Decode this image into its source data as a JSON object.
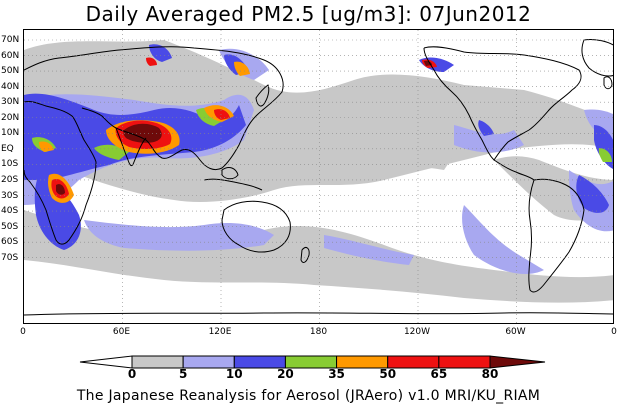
{
  "title": "Daily Averaged PM2.5 [ug/m3]: 07Jun2012",
  "footer": "The Japanese Reanalysis for Aerosol (JRAero) v1.0 MRI/KU_RIAM",
  "lat_labels": [
    "70N",
    "60N",
    "50N",
    "40N",
    "30N",
    "20N",
    "10N",
    "EQ",
    "10S",
    "20S",
    "30S",
    "40S",
    "50S",
    "60S",
    "70S"
  ],
  "lon_labels": [
    "0",
    "60E",
    "120E",
    "180",
    "120W",
    "60W",
    "0"
  ],
  "colorbar": {
    "levels": [
      "0",
      "5",
      "10",
      "20",
      "35",
      "50",
      "65",
      "80"
    ],
    "colors": [
      "#ffffff",
      "#c8c8c8",
      "#a8a8f0",
      "#4a4ae6",
      "#88cc33",
      "#ff9900",
      "#ee1111",
      "#6e0a0a"
    ]
  }
}
